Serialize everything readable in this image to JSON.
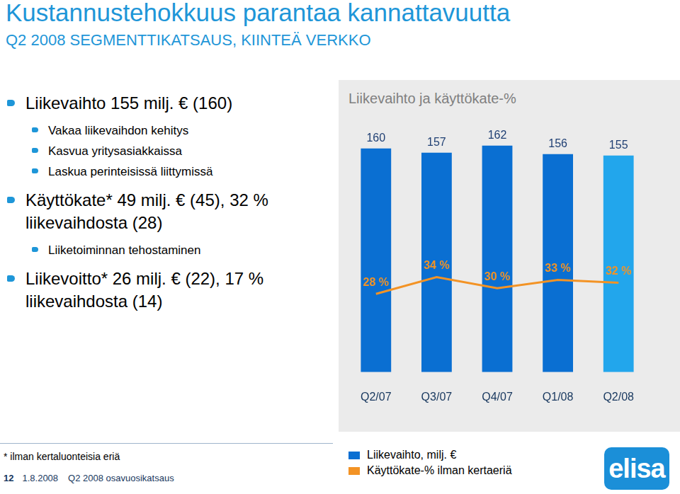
{
  "page": {
    "title": "Kustannustehokkuus parantaa kannattavuutta",
    "subtitle": "Q2 2008 SEGMENTTIKATSAUS, KIINTEÄ VERKKO",
    "bullets": [
      {
        "text": "Liikevaihto 155 milj. € (160)",
        "sub": [
          "Vakaa liikevaihdon kehitys",
          "Kasvua yritysasiakkaissa",
          "Laskua perinteisissä liittymissä"
        ]
      },
      {
        "text": "Käyttökate* 49 milj. € (45), 32 % liikevaihdosta (28)",
        "sub": [
          "Liiketoiminnan tehostaminen"
        ]
      },
      {
        "text": "Liikevoitto* 26 milj. € (22), 17 % liikevaihdosta (14)",
        "sub": []
      }
    ],
    "footnote": "* ilman kertaluonteisia eriä",
    "footer": [
      "12",
      "1.8.2008",
      "Q2 2008 osavuosikatsaus"
    ],
    "logo": "elisa"
  },
  "chart_data": {
    "type": "bar",
    "title": "Liikevaihto ja käyttökate-%",
    "categories": [
      "Q2/07",
      "Q3/07",
      "Q4/07",
      "Q1/08",
      "Q2/08"
    ],
    "series": [
      {
        "name": "Liikevaihto, milj. €",
        "type": "bar",
        "color": "#0a6fd2",
        "colors": [
          "#0a6fd2",
          "#0a6fd2",
          "#0a6fd2",
          "#0a6fd2",
          "#22a6ec"
        ],
        "values": [
          160,
          157,
          162,
          156,
          155
        ]
      },
      {
        "name": "Käyttökate-% ilman kertaeriä",
        "type": "line",
        "color": "#f39325",
        "axis": "y2",
        "values": [
          28,
          34,
          30,
          33,
          32
        ],
        "value_labels": [
          "28 %",
          "34 %",
          "30 %",
          "33 %",
          "32 %"
        ]
      }
    ],
    "ylim": [
      0,
      170
    ],
    "y2lim": [
      0,
      85
    ],
    "data_labels": true,
    "tick_labels": "x",
    "grid": false,
    "legend": "bottom"
  }
}
